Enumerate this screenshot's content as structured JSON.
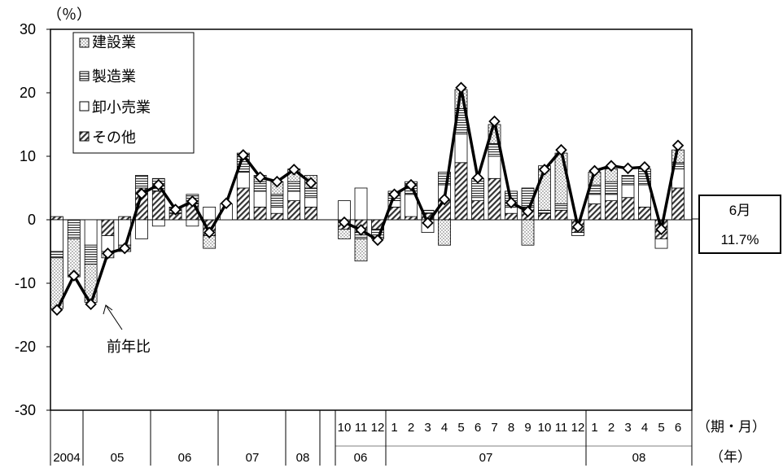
{
  "chart_data": {
    "type": "bar",
    "y_unit": "（％）",
    "ylim": [
      -30,
      30
    ],
    "yticks": [
      30,
      20,
      10,
      0,
      -10,
      -20,
      -30
    ],
    "legend": [
      {
        "name": "建設業",
        "pattern": "dots"
      },
      {
        "name": "製造業",
        "pattern": "hlines"
      },
      {
        "name": "卸小売業",
        "pattern": "white"
      },
      {
        "name": "その他",
        "pattern": "diag"
      }
    ],
    "legend_placement": "top-left",
    "line_label": "前年比",
    "callout": {
      "line1": "6月",
      "line2": "11.7%"
    },
    "x_axis_label_row1": "（期・月）",
    "x_axis_label_row2": "（年）",
    "x_rows": {
      "row1": [
        "10",
        "11",
        "12",
        "1",
        "2",
        "3",
        "4",
        "5",
        "6",
        "7",
        "8",
        "9",
        "10",
        "11",
        "12",
        "1",
        "2",
        "3",
        "4",
        "5",
        "6"
      ],
      "row2": [
        "2004",
        "05",
        "06",
        "07",
        "08",
        "06",
        "07",
        "08"
      ]
    },
    "series_order": [
      "建設業",
      "製造業",
      "卸小売業",
      "その他"
    ],
    "quarterly": [
      {
        "label": "2004Q4",
        "c": -8,
        "m": -1,
        "w": -5,
        "o": 0.5,
        "total": -14.2
      },
      {
        "label": "05Q1",
        "c": -6,
        "m": -3,
        "w": 0,
        "o": 0,
        "total": -8.8
      },
      {
        "label": "05Q2",
        "c": -6,
        "m": -3,
        "w": -4,
        "o": 0,
        "total": -13.3
      },
      {
        "label": "05Q3",
        "c": -1,
        "m": 0,
        "w": -2.5,
        "o": -2.5,
        "total": -5.3
      },
      {
        "label": "05Q4",
        "c": -1,
        "m": 0,
        "w": -4,
        "o": 0.5,
        "total": -4.5
      },
      {
        "label": "06Q1",
        "c": 0,
        "m": 2,
        "w": -3,
        "o": 5,
        "total": 4.1
      },
      {
        "label": "06Q2",
        "c": 0,
        "m": 2,
        "w": -1,
        "o": 4.5,
        "total": 5.5
      },
      {
        "label": "06Q3",
        "c": 0,
        "m": 1,
        "w": 0,
        "o": 1,
        "total": 1.6
      },
      {
        "label": "06Q4",
        "c": 0,
        "m": 1.5,
        "w": -1,
        "o": 2.5,
        "total": 2.9
      },
      {
        "label": "07Q1",
        "c": -2,
        "m": 0,
        "w": 2,
        "o": -2.5,
        "total": -2.0
      },
      {
        "label": "07Q2",
        "c": 0,
        "m": 0,
        "w": 2.5,
        "o": 0,
        "total": 2.6
      },
      {
        "label": "07Q3",
        "c": 0,
        "m": 3,
        "w": 2.5,
        "o": 5,
        "total": 10.2
      },
      {
        "label": "07Q4",
        "c": 1,
        "m": 1.5,
        "w": 2.5,
        "o": 2,
        "total": 6.7
      },
      {
        "label": "08Q1",
        "c": 2,
        "m": 2,
        "w": 1,
        "o": 1,
        "total": 6.0
      },
      {
        "label": "08Q2",
        "c": 2,
        "m": 1.5,
        "w": 1.5,
        "o": 3,
        "total": 7.9
      },
      {
        "label": "08Q3",
        "c": 2,
        "m": 1.5,
        "w": 1.5,
        "o": 2,
        "total": 5.8
      }
    ],
    "monthly": [
      {
        "label": "06.10",
        "c": -1.5,
        "m": 0,
        "w": 3,
        "o": -1.5,
        "total": -0.4
      },
      {
        "label": "06.11",
        "c": -3.5,
        "m": -1,
        "w": 5,
        "o": -2,
        "total": -1.6
      },
      {
        "label": "06.12",
        "c": 0,
        "m": -1.5,
        "w": 0,
        "o": -1.5,
        "total": -3.2
      },
      {
        "label": "07.1",
        "c": 0,
        "m": 1.5,
        "w": 1,
        "o": 2,
        "total": 4.0
      },
      {
        "label": "07.2",
        "c": 0,
        "m": 2,
        "w": 3.5,
        "o": 0.5,
        "total": 5.5
      },
      {
        "label": "07.3",
        "c": 0,
        "m": 0.5,
        "w": -2,
        "o": 1,
        "total": -0.5
      },
      {
        "label": "07.4",
        "c": -4,
        "m": 2,
        "w": 2.5,
        "o": 3,
        "total": 3.2
      },
      {
        "label": "07.5",
        "c": 3,
        "m": 4,
        "w": 4.5,
        "o": 9,
        "total": 20.8
      },
      {
        "label": "07.6",
        "c": 0,
        "m": 3,
        "w": 0.5,
        "o": 3,
        "total": 6.6
      },
      {
        "label": "07.7",
        "c": 3,
        "m": 2,
        "w": 3.5,
        "o": 6.5,
        "total": 15.5
      },
      {
        "label": "07.8",
        "c": 0,
        "m": 2.5,
        "w": 1,
        "o": 1,
        "total": 2.7
      },
      {
        "label": "07.9",
        "c": -4,
        "m": 3,
        "w": 0,
        "o": 2,
        "total": 1.3
      },
      {
        "label": "07.10",
        "c": 7,
        "m": 0.5,
        "w": 0,
        "o": 1,
        "total": 7.9
      },
      {
        "label": "07.11",
        "c": 8,
        "m": 1,
        "w": 0,
        "o": 1.5,
        "total": 11.0
      },
      {
        "label": "07.12",
        "c": 0,
        "m": 0,
        "w": -0.5,
        "o": -2,
        "total": -1.1
      },
      {
        "label": "08.1",
        "c": 2,
        "m": 1.5,
        "w": 1.5,
        "o": 2.5,
        "total": 7.7
      },
      {
        "label": "08.2",
        "c": 2,
        "m": 2,
        "w": 1,
        "o": 3,
        "total": 8.5
      },
      {
        "label": "08.3",
        "c": 0,
        "m": 1.5,
        "w": 2,
        "o": 3.5,
        "total": 8.1
      },
      {
        "label": "08.4",
        "c": 0,
        "m": 2.5,
        "w": 3.5,
        "o": 2,
        "total": 8.3
      },
      {
        "label": "08.5",
        "c": 0,
        "m": 0,
        "w": -1.5,
        "o": -3,
        "total": -1.5
      },
      {
        "label": "08.6",
        "c": 2,
        "m": 1,
        "w": 3,
        "o": 5,
        "total": 11.7
      }
    ]
  }
}
